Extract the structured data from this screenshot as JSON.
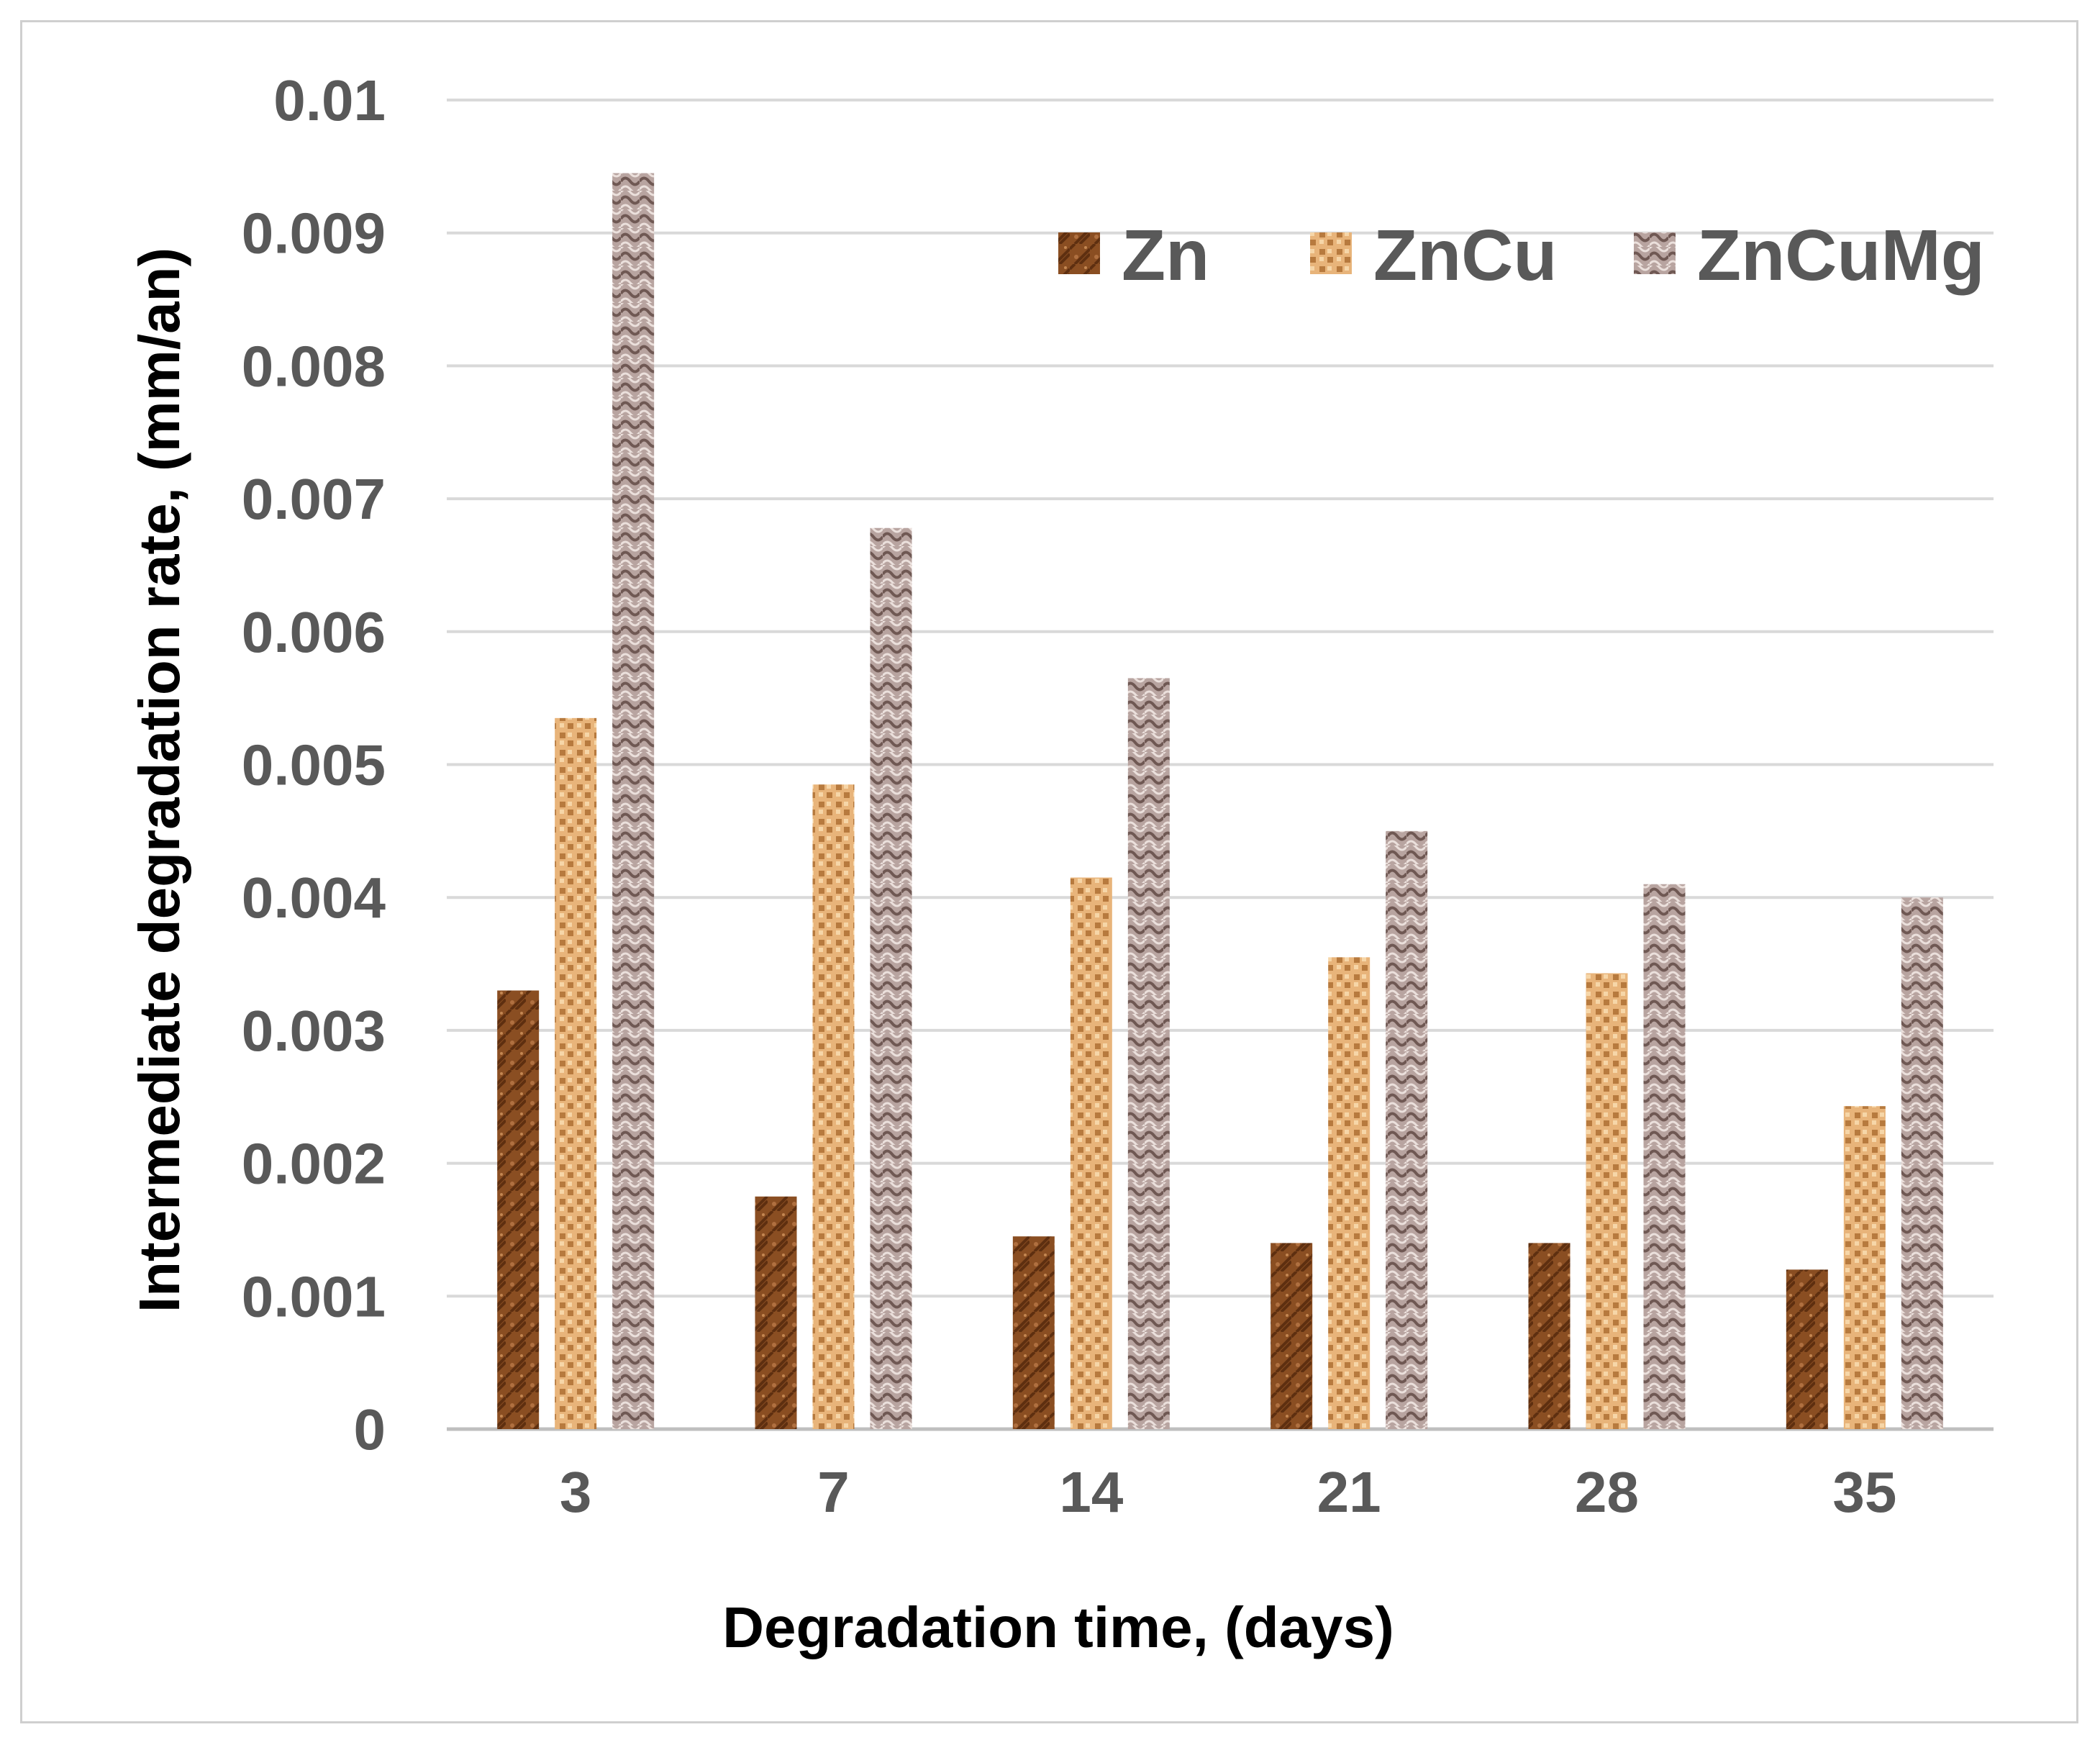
{
  "chart_data": {
    "type": "bar",
    "title": "",
    "xlabel": "Degradation time, (days)",
    "ylabel": "Intermediate degradation rate, (mm/an)",
    "categories": [
      "3",
      "7",
      "14",
      "21",
      "28",
      "35"
    ],
    "yticks": [
      "0",
      "0.001",
      "0.002",
      "0.003",
      "0.004",
      "0.005",
      "0.006",
      "0.007",
      "0.008",
      "0.009",
      "0.01"
    ],
    "ylim": [
      0,
      0.01
    ],
    "grid": true,
    "legend_position": "top-right",
    "series": [
      {
        "name": "Zn",
        "color": "#8a4e22",
        "values": [
          0.0033,
          0.00175,
          0.00145,
          0.0014,
          0.0014,
          0.0012
        ]
      },
      {
        "name": "ZnCu",
        "color": "#e2a96c",
        "values": [
          0.00535,
          0.00485,
          0.00415,
          0.00355,
          0.00343,
          0.00243
        ]
      },
      {
        "name": "ZnCuMg",
        "color": "#a8928e",
        "values": [
          0.00945,
          0.00678,
          0.00565,
          0.0045,
          0.0041,
          0.004
        ]
      }
    ]
  }
}
